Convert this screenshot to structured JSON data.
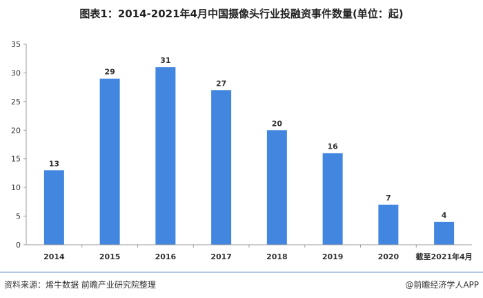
{
  "chart_data": {
    "type": "bar",
    "title": "图表1：2014-2021年4月中国摄像头行业投融资事件数量(单位：起)",
    "categories": [
      "2014",
      "2015",
      "2016",
      "2017",
      "2018",
      "2019",
      "2020",
      "截至2021年4月"
    ],
    "values": [
      13,
      29,
      31,
      27,
      20,
      16,
      7,
      4
    ],
    "yticks": [
      "0",
      "5",
      "10",
      "15",
      "20",
      "25",
      "30",
      "35"
    ],
    "ylim": [
      0,
      35
    ],
    "xlabel": "",
    "ylabel": "",
    "grid": false,
    "bar_color": "#4286e0"
  },
  "footer": {
    "source": "资料来源：烯牛数据 前瞻产业研究院整理",
    "credit": "@前瞻经济学人APP"
  },
  "colors": {
    "accent": "#3a6fb5"
  }
}
